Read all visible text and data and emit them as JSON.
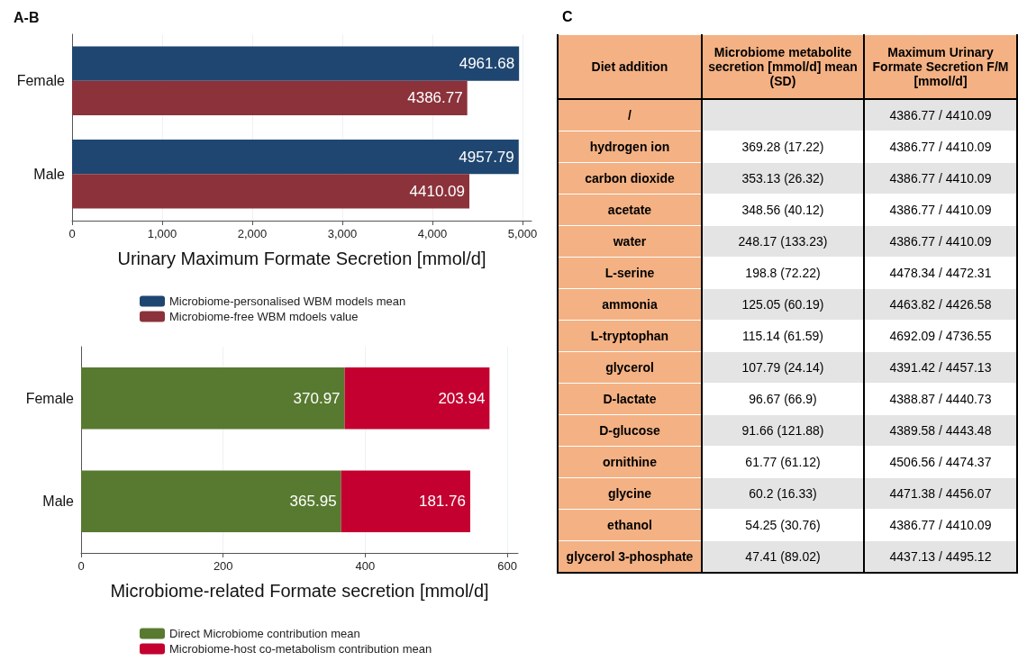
{
  "chart_data": [
    {
      "type": "bar",
      "title": "A-B",
      "orientation": "horizontal",
      "xlabel": "Urinary Maximum Formate Secretion [mmol/d]",
      "categories": [
        "Female",
        "Male"
      ],
      "series": [
        {
          "name": "Microbiome-personalised WBM models mean",
          "color": "#1f4670",
          "values": [
            4961.68,
            4957.79
          ]
        },
        {
          "name": "Microbiome-free WBM mdoels value",
          "color": "#8b323a",
          "values": [
            4386.77,
            4410.09
          ]
        }
      ],
      "xlim": [
        0,
        5100
      ],
      "xticks": [
        0,
        {
          "value": 1000,
          "label": "1,000"
        },
        {
          "value": 2000,
          "label": "2,000"
        },
        {
          "value": 3000,
          "label": "3,000"
        },
        {
          "value": 4000,
          "label": "4,000"
        },
        {
          "value": 5000,
          "label": "5,000"
        }
      ],
      "grid": "x",
      "legend": "bottom",
      "data_labels": true
    },
    {
      "type": "bar",
      "orientation": "horizontal",
      "stacked": true,
      "xlabel": "Microbiome-related Formate secretion [mmol/d]",
      "categories": [
        "Female",
        "Male"
      ],
      "series": [
        {
          "name": "Direct Microbiome contribution mean",
          "color": "#587a30",
          "values": [
            370.97,
            365.95
          ]
        },
        {
          "name": "Microbiome-host co-metabolism contribution mean",
          "color": "#c3002f",
          "values": [
            203.94,
            181.76
          ]
        }
      ],
      "xlim": [
        0,
        615
      ],
      "xticks": [
        0,
        200,
        400,
        600
      ],
      "grid": "x",
      "legend": "bottom",
      "data_labels": true
    },
    {
      "type": "other",
      "title": "C",
      "ylabel": "Diet addition",
      "categories": [
        "Microbiome metabolite secretion [mmol/d] mean (SD)",
        "Maximum Urinary Formate Secretion F/M [mmol/d]"
      ],
      "y_categories": [
        "/",
        "hydrogen ion",
        "carbon dioxide",
        "acetate",
        "water",
        "L-serine",
        "ammonia",
        "L-tryptophan",
        "glycerol",
        "D-lactate",
        "D-glucose",
        "ornithine",
        "glycine",
        "ethanol",
        "glycerol 3-phosphate"
      ],
      "cell_labels": [
        [
          null,
          "4386.77 / 4410.09"
        ],
        [
          "369.28 (17.22)",
          "4386.77 / 4410.09"
        ],
        [
          "353.13 (26.32)",
          "4386.77 / 4410.09"
        ],
        [
          "348.56 (40.12)",
          "4386.77 / 4410.09"
        ],
        [
          "248.17 (133.23)",
          "4386.77 / 4410.09"
        ],
        [
          "198.8 (72.22)",
          "4478.34 / 4472.31"
        ],
        [
          "125.05 (60.19)",
          "4463.82 / 4426.58"
        ],
        [
          "115.14 (61.59)",
          "4692.09 / 4736.55"
        ],
        [
          "107.79 (24.14)",
          "4391.42 / 4457.13"
        ],
        [
          "96.67 (66.9)",
          "4388.87 / 4440.73"
        ],
        [
          "91.66 (121.88)",
          "4389.58 / 4443.48"
        ],
        [
          "61.77 (61.12)",
          "4506.56 / 4474.37"
        ],
        [
          "60.2 (16.33)",
          "4471.38 / 4456.07"
        ],
        [
          "54.25 (30.76)",
          "4386.77 / 4410.09"
        ],
        [
          "47.41 (89.02)",
          "4437.13 / 4495.12"
        ]
      ]
    }
  ]
}
